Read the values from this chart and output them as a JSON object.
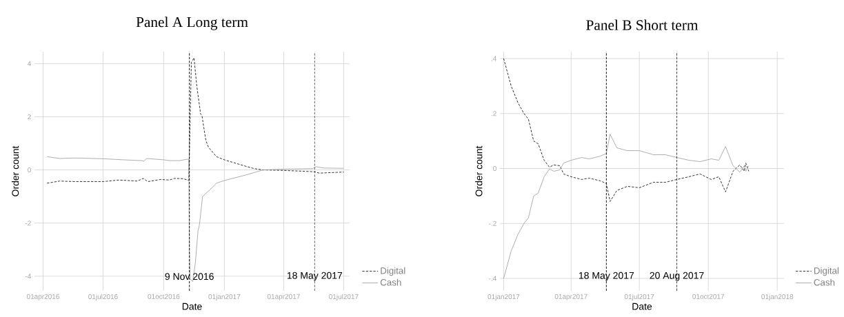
{
  "chart_data": [
    {
      "type": "line",
      "title": "Panel A Long term",
      "xlabel": "Date",
      "ylabel": "Order count",
      "xlim": [
        "2016-03-19",
        "2017-07-10"
      ],
      "ylim": [
        -4.55,
        4.45
      ],
      "xticks": [
        {
          "value": "2016-04-01",
          "label": "01apr2016"
        },
        {
          "value": "2016-07-01",
          "label": "01jul2016"
        },
        {
          "value": "2016-10-01",
          "label": "01oct2016"
        },
        {
          "value": "2017-01-01",
          "label": "01jan2017"
        },
        {
          "value": "2017-04-01",
          "label": "01apr2017"
        },
        {
          "value": "2017-07-01",
          "label": "01jul2017"
        }
      ],
      "yticks": [
        -4,
        -2,
        0,
        2,
        4
      ],
      "grid": true,
      "legend": "right",
      "ref_lines": [
        {
          "axis": "x",
          "value": "2016-11-09",
          "label": "9 Nov 2016",
          "color": "#000000",
          "line_style": "dashed"
        },
        {
          "axis": "x",
          "value": "2017-05-18",
          "label": "18 May 2017",
          "color": "#555555",
          "line_style": "dashed"
        }
      ],
      "series": [
        {
          "name": "Digital",
          "color": "#000000",
          "line_style": "dashed",
          "x": [
            "2016-04-07",
            "2016-04-26",
            "2016-05-20",
            "2016-07-01",
            "2016-07-25",
            "2016-08-22",
            "2016-08-31",
            "2016-09-07",
            "2016-09-26",
            "2016-10-10",
            "2016-10-17",
            "2016-10-31",
            "2016-11-08",
            "2016-11-12",
            "2016-11-16",
            "2016-11-20",
            "2016-11-26",
            "2016-11-28",
            "2016-12-04",
            "2016-12-08",
            "2016-12-20",
            "2017-01-01",
            "2017-01-25",
            "2017-02-15",
            "2017-03-01",
            "2017-04-01",
            "2017-05-01",
            "2017-05-18",
            "2017-05-25",
            "2017-07-01"
          ],
          "values": [
            -0.5,
            -0.42,
            -0.44,
            -0.44,
            -0.38,
            -0.42,
            -0.32,
            -0.44,
            -0.36,
            -0.38,
            -0.32,
            -0.33,
            -0.4,
            4.05,
            4.22,
            3.2,
            2.1,
            2.05,
            1.1,
            0.85,
            0.5,
            0.38,
            0.2,
            0.05,
            0.0,
            -0.02,
            -0.05,
            -0.07,
            -0.12,
            -0.08
          ]
        },
        {
          "name": "Cash",
          "color": "#999999",
          "line_style": "solid",
          "x": [
            "2016-04-07",
            "2016-04-26",
            "2016-05-20",
            "2016-07-01",
            "2016-08-01",
            "2016-08-29",
            "2016-09-01",
            "2016-09-05",
            "2016-10-01",
            "2016-10-10",
            "2016-10-25",
            "2016-11-05",
            "2016-11-08",
            "2016-11-09",
            "2016-11-10",
            "2016-11-14",
            "2016-11-18",
            "2016-11-22",
            "2016-11-24",
            "2016-11-29",
            "2016-12-10",
            "2016-12-20",
            "2017-01-01",
            "2017-02-01",
            "2017-03-01",
            "2017-04-01",
            "2017-05-15",
            "2017-05-20",
            "2017-06-01",
            "2017-07-01"
          ],
          "values": [
            0.5,
            0.43,
            0.45,
            0.42,
            0.38,
            0.35,
            0.33,
            0.43,
            0.38,
            0.35,
            0.35,
            0.4,
            0.4,
            -3.0,
            -4.1,
            -4.2,
            -3.5,
            -2.3,
            -2.1,
            -1.0,
            -0.75,
            -0.5,
            -0.4,
            -0.2,
            0.0,
            0.03,
            0.05,
            0.12,
            0.07,
            0.06
          ]
        }
      ]
    },
    {
      "type": "line",
      "title": "Panel B Short term",
      "xlabel": "Date",
      "ylabel": "Order count",
      "xlim": [
        "2016-12-27",
        "2018-01-10"
      ],
      "ylim": [
        -0.445,
        0.425
      ],
      "xticks": [
        {
          "value": "2017-01-01",
          "label": "01jan2017"
        },
        {
          "value": "2017-04-01",
          "label": "01apr2017"
        },
        {
          "value": "2017-07-01",
          "label": "01jul2017"
        },
        {
          "value": "2017-10-01",
          "label": "01oct2017"
        },
        {
          "value": "2018-01-01",
          "label": "01jan2018"
        }
      ],
      "yticks": [
        {
          "value": -0.4,
          "label": "-.4"
        },
        {
          "value": -0.2,
          "label": "-.2"
        },
        0,
        {
          "value": 0.2,
          "label": ".2"
        },
        {
          "value": 0.4,
          "label": ".4"
        }
      ],
      "grid": true,
      "legend": "right",
      "ref_lines": [
        {
          "axis": "x",
          "value": "2017-05-18",
          "label": "18 May 2017",
          "color": "#000000",
          "line_style": "dashed"
        },
        {
          "axis": "x",
          "value": "2017-08-20",
          "label": "20 Aug 2017",
          "color": "#333333",
          "line_style": "dashed"
        }
      ],
      "series": [
        {
          "name": "Digital",
          "color": "#000000",
          "line_style": "dashed",
          "x": [
            "2017-01-01",
            "2017-01-11",
            "2017-01-20",
            "2017-01-28",
            "2017-02-03",
            "2017-02-10",
            "2017-02-16",
            "2017-02-24",
            "2017-03-03",
            "2017-03-09",
            "2017-03-17",
            "2017-03-22",
            "2017-04-01",
            "2017-04-15",
            "2017-04-25",
            "2017-05-10",
            "2017-05-18",
            "2017-05-23",
            "2017-06-01",
            "2017-06-15",
            "2017-07-01",
            "2017-07-20",
            "2017-08-05",
            "2017-08-20",
            "2017-09-05",
            "2017-09-20",
            "2017-10-05",
            "2017-10-15",
            "2017-10-24",
            "2017-11-03",
            "2017-11-12",
            "2017-11-18",
            "2017-11-20",
            "2017-11-24"
          ],
          "values": [
            0.4,
            0.3,
            0.24,
            0.2,
            0.18,
            0.1,
            0.09,
            0.03,
            0.005,
            0.013,
            0.01,
            -0.02,
            -0.03,
            -0.04,
            -0.035,
            -0.045,
            -0.055,
            -0.12,
            -0.08,
            -0.065,
            -0.07,
            -0.05,
            -0.05,
            -0.04,
            -0.03,
            -0.02,
            -0.04,
            -0.03,
            -0.085,
            -0.01,
            0.013,
            -0.01,
            0.02,
            -0.01
          ]
        },
        {
          "name": "Cash",
          "color": "#999999",
          "line_style": "solid",
          "x": [
            "2017-01-01",
            "2017-01-11",
            "2017-01-20",
            "2017-01-28",
            "2017-02-03",
            "2017-02-10",
            "2017-02-16",
            "2017-02-24",
            "2017-03-03",
            "2017-03-09",
            "2017-03-17",
            "2017-03-22",
            "2017-04-01",
            "2017-04-15",
            "2017-04-25",
            "2017-05-10",
            "2017-05-18",
            "2017-05-23",
            "2017-06-01",
            "2017-06-15",
            "2017-07-01",
            "2017-07-20",
            "2017-08-05",
            "2017-08-20",
            "2017-09-05",
            "2017-09-20",
            "2017-10-05",
            "2017-10-15",
            "2017-10-24",
            "2017-11-03",
            "2017-11-12",
            "2017-11-18",
            "2017-11-20",
            "2017-11-24"
          ],
          "values": [
            -0.4,
            -0.3,
            -0.24,
            -0.2,
            -0.18,
            -0.1,
            -0.09,
            -0.03,
            -0.002,
            -0.01,
            -0.005,
            0.02,
            0.03,
            0.04,
            0.035,
            0.045,
            0.055,
            0.125,
            0.075,
            0.065,
            0.065,
            0.05,
            0.05,
            0.04,
            0.03,
            0.025,
            0.035,
            0.03,
            0.08,
            0.01,
            -0.013,
            0.01,
            -0.01,
            0.01
          ]
        }
      ]
    }
  ]
}
